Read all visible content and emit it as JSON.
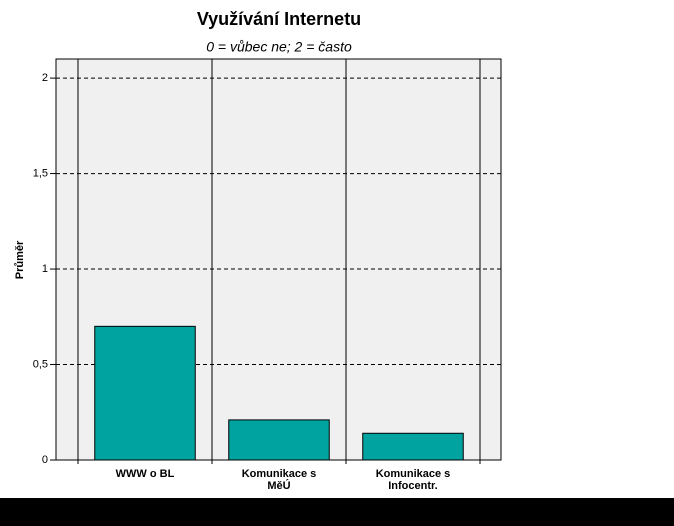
{
  "chart_data": {
    "type": "bar",
    "title": "Využívání Internetu",
    "subtitle": "0 = vůbec ne; 2 = často",
    "y_label": "Průměr",
    "categories": [
      "WWW o BL",
      "Komunikace s MěÚ",
      "Komunikace s Infocentr."
    ],
    "values": [
      0.7,
      0.21,
      0.14
    ],
    "color": "#00a39f",
    "ylim": [
      0,
      2.1
    ],
    "yticks": [
      0,
      {
        "value": 0.5,
        "label": "0,5"
      },
      1,
      {
        "value": 1.5,
        "label": "1,5"
      },
      2
    ],
    "grid": true
  }
}
